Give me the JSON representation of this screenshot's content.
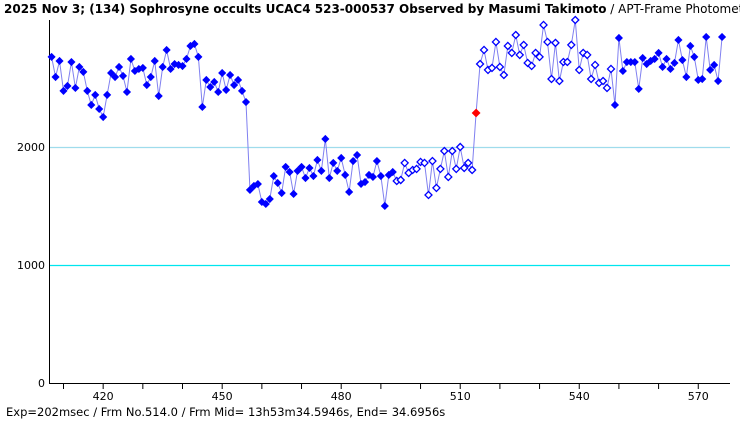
{
  "chart_data": {
    "type": "line",
    "title_bold": "2025 Nov 3; (134) Sophrosyne occults UCAC4 523-000537 Observed by Masumi Takimoto",
    "title_rest": " / APT-Frame Photometry /",
    "xlabel": "",
    "ylabel": "",
    "xlim": [
      406.6,
      578
    ],
    "ylim": [
      0,
      3076
    ],
    "x_ticks": [
      420,
      450,
      480,
      510,
      540,
      570
    ],
    "x_minor_step": 10,
    "y_ticks": [
      0,
      1000,
      2000
    ],
    "reference_lines": [
      {
        "value": 2000,
        "color": "#9fdcec"
      },
      {
        "value": 1000,
        "color": "#00e5ee"
      }
    ],
    "line_color": "#8080f0",
    "marker_color": "#0000ff",
    "highlight_color": "#ff0000",
    "highlight_frame": 514,
    "hollow_range": [
      494,
      548
    ],
    "x_start": 407,
    "values": [
      2763,
      2593,
      2729,
      2475,
      2517,
      2720,
      2500,
      2678,
      2636,
      2475,
      2356,
      2441,
      2322,
      2254,
      2441,
      2627,
      2593,
      2678,
      2602,
      2466,
      2746,
      2644,
      2661,
      2670,
      2525,
      2593,
      2729,
      2432,
      2678,
      2822,
      2661,
      2703,
      2695,
      2686,
      2746,
      2856,
      2873,
      2763,
      2339,
      2568,
      2508,
      2551,
      2466,
      2627,
      2483,
      2610,
      2525,
      2568,
      2475,
      2381,
      1636,
      1670,
      1686,
      1534,
      1517,
      1559,
      1754,
      1695,
      1610,
      1831,
      1788,
      1602,
      1797,
      1831,
      1737,
      1822,
      1754,
      1890,
      1797,
      2068,
      1737,
      1865,
      1797,
      1907,
      1763,
      1619,
      1881,
      1932,
      1687,
      1703,
      1763,
      1746,
      1881,
      1754,
      1500,
      1763,
      1788,
      1712,
      1720,
      1865,
      1780,
      1805,
      1814,
      1873,
      1865,
      1593,
      1881,
      1653,
      1814,
      1966,
      1746,
      1966,
      1814,
      2000,
      1822,
      1865,
      1805,
      2288,
      2703,
      2822,
      2653,
      2670,
      2890,
      2678,
      2610,
      2856,
      2797,
      2949,
      2780,
      2865,
      2712,
      2687,
      2797,
      2763,
      3034,
      2890,
      2576,
      2882,
      2559,
      2720,
      2720,
      2865,
      3076,
      2653,
      2797,
      2780,
      2576,
      2695,
      2543,
      2559,
      2500,
      2661,
      2356,
      2924,
      2644,
      2720,
      2720,
      2720,
      2492,
      2754,
      2703,
      2729,
      2746,
      2797,
      2678,
      2746,
      2661,
      2712,
      2907,
      2737,
      2593,
      2856,
      2763,
      2568,
      2576,
      2932,
      2653,
      2695,
      2559,
      2932
    ]
  },
  "footer": "Exp=202msec / Frm No.514.0 / Frm Mid= 13h53m34.5946s,  End= 34.6956s"
}
